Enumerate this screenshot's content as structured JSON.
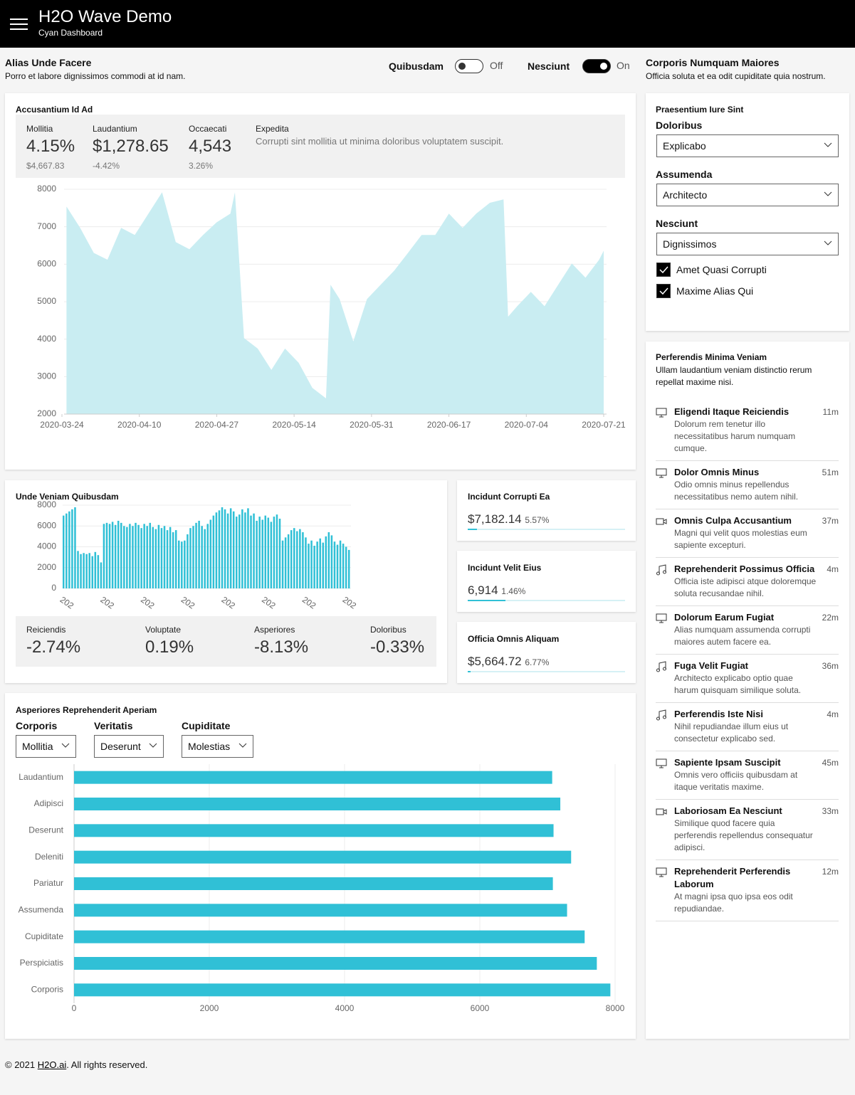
{
  "header": {
    "title": "H2O Wave Demo",
    "subtitle": "Cyan Dashboard"
  },
  "section_left": {
    "title": "Alias Unde Facere",
    "subtitle": "Porro et labore dignissimos commodi at id nam."
  },
  "toggles": [
    {
      "label": "Quibusdam",
      "state": "Off",
      "on": false
    },
    {
      "label": "Nesciunt",
      "state": "On",
      "on": true
    }
  ],
  "section_right": {
    "title": "Corporis Numquam Maiores",
    "subtitle": "Officia soluta et ea odit cupiditate quia nostrum."
  },
  "stats_top": [
    {
      "label": "Mollitia",
      "value": "4.15%",
      "aux": "$4,667.83"
    },
    {
      "label": "Laudantium",
      "value": "$1,278.65",
      "aux": "-4.42%"
    },
    {
      "label": "Occaecati",
      "value": "4,543",
      "aux": "3.26%"
    }
  ],
  "expedita": {
    "label": "Expedita",
    "text": "Corrupti sint mollitia ut minima doloribus voluptatem suscipit."
  },
  "stats_bottom": [
    {
      "label": "Reiciendis",
      "value": "-2.74%"
    },
    {
      "label": "Voluptate",
      "value": "0.19%"
    },
    {
      "label": "Asperiores",
      "value": "-8.13%"
    },
    {
      "label": "Doloribus",
      "value": "-0.33%"
    }
  ],
  "small_stats": [
    {
      "title": "Incidunt Corrupti Ea",
      "value": "$7,182.14",
      "aux": "5.57%",
      "progress": 0.06
    },
    {
      "title": "Incidunt Velit Eius",
      "value": "6,914",
      "aux": "1.46%",
      "progress": 0.24
    },
    {
      "title": "Officia Omnis Aliquam",
      "value": "$5,664.72",
      "aux": "6.77%",
      "progress": 0.02
    }
  ],
  "filters": [
    {
      "label": "Corporis",
      "value": "Mollitia"
    },
    {
      "label": "Veritatis",
      "value": "Deserunt"
    },
    {
      "label": "Cupiditate",
      "value": "Molestias"
    }
  ],
  "form": {
    "title": "Praesentium Iure Sint",
    "dropdowns": [
      {
        "label": "Doloribus",
        "value": "Explicabo"
      },
      {
        "label": "Assumenda",
        "value": "Architecto"
      },
      {
        "label": "Nesciunt",
        "value": "Dignissimos"
      }
    ],
    "checkboxes": [
      {
        "label": "Amet Quasi Corrupti",
        "checked": true
      },
      {
        "label": "Maxime Alias Qui",
        "checked": true
      }
    ]
  },
  "activity": {
    "title": "Perferendis Minima Veniam",
    "caption": "Ullam laudantium veniam distinctio rerum repellat maxime nisi.",
    "items": [
      {
        "icon": "monitor",
        "title": "Eligendi Itaque Reiciendis",
        "text": "Dolorum rem tenetur illo necessitatibus harum numquam cumque.",
        "time": "11m"
      },
      {
        "icon": "monitor",
        "title": "Dolor Omnis Minus",
        "text": "Odio omnis minus repellendus necessitatibus nemo autem nihil.",
        "time": "51m"
      },
      {
        "icon": "video",
        "title": "Omnis Culpa Accusantium",
        "text": "Magni qui velit quos molestias eum sapiente excepturi.",
        "time": "37m"
      },
      {
        "icon": "music",
        "title": "Reprehenderit Possimus Officia",
        "text": "Officia iste adipisci atque doloremque soluta recusandae nihil.",
        "time": "4m"
      },
      {
        "icon": "monitor",
        "title": "Dolorum Earum Fugiat",
        "text": "Alias numquam assumenda corrupti maiores autem facere ea.",
        "time": "22m"
      },
      {
        "icon": "music",
        "title": "Fuga Velit Fugiat",
        "text": "Architecto explicabo optio quae harum quisquam similique soluta.",
        "time": "36m"
      },
      {
        "icon": "music",
        "title": "Perferendis Iste Nisi",
        "text": "Nihil repudiandae illum eius ut consectetur explicabo sed.",
        "time": "4m"
      },
      {
        "icon": "monitor",
        "title": "Sapiente Ipsam Suscipit",
        "text": "Omnis vero officiis quibusdam at itaque veritatis maxime.",
        "time": "45m"
      },
      {
        "icon": "video",
        "title": "Laboriosam Ea Nesciunt",
        "text": "Similique quod facere quia perferendis repellendus consequatur adipisci.",
        "time": "33m"
      },
      {
        "icon": "monitor",
        "title": "Reprehenderit Perferendis Laborum",
        "text": "At magni ipsa quo ipsa eos odit repudiandae.",
        "time": "12m"
      }
    ]
  },
  "footer": {
    "prefix": "© 2021",
    "link": "H2O.ai",
    "suffix": ". All rights reserved."
  },
  "chart_data": [
    {
      "type": "area",
      "title": "Accusantium Id Ad",
      "color": "#c9edf2",
      "grid": true,
      "x": [
        "2020-03-25",
        "2020-03-28",
        "2020-03-31",
        "2020-04-03",
        "2020-04-06",
        "2020-04-09",
        "2020-04-12",
        "2020-04-15",
        "2020-04-18",
        "2020-04-21",
        "2020-04-24",
        "2020-04-27",
        "2020-04-30",
        "2020-05-01",
        "2020-05-03",
        "2020-05-06",
        "2020-05-09",
        "2020-05-12",
        "2020-05-15",
        "2020-05-18",
        "2020-05-21",
        "2020-05-22",
        "2020-05-24",
        "2020-05-27",
        "2020-05-30",
        "2020-06-02",
        "2020-06-05",
        "2020-06-08",
        "2020-06-11",
        "2020-06-14",
        "2020-06-17",
        "2020-06-20",
        "2020-06-23",
        "2020-06-26",
        "2020-06-29",
        "2020-06-30",
        "2020-07-02",
        "2020-07-05",
        "2020-07-08",
        "2020-07-11",
        "2020-07-14",
        "2020-07-17",
        "2020-07-20",
        "2020-07-21"
      ],
      "values": [
        7540,
        6970,
        6300,
        6120,
        6970,
        6780,
        7350,
        7920,
        6590,
        6400,
        6780,
        7120,
        7350,
        7920,
        4030,
        3750,
        3180,
        3750,
        3370,
        2700,
        2420,
        5450,
        5070,
        3940,
        5070,
        5450,
        5830,
        6300,
        6780,
        6780,
        7350,
        6970,
        7350,
        7640,
        7730,
        4600,
        4880,
        5260,
        4880,
        5450,
        6020,
        5640,
        6120,
        6360
      ],
      "xlim": [
        "2020-03-24",
        "2020-07-21"
      ],
      "xticks": [
        "2020-03-24",
        "2020-04-10",
        "2020-04-27",
        "2020-05-14",
        "2020-05-31",
        "2020-06-17",
        "2020-07-04",
        "2020-07-21"
      ],
      "ylim": [
        2000,
        8000
      ],
      "yticks": [
        2000,
        3000,
        4000,
        5000,
        6000,
        7000,
        8000
      ]
    },
    {
      "type": "bar",
      "title": "Unde Veniam Quibusdam",
      "color": "#30c0d6",
      "grid": true,
      "categories": [
        null,
        "202",
        null,
        null,
        null,
        null,
        null,
        null,
        null,
        null,
        null,
        null,
        null,
        null,
        null,
        "202",
        null,
        null,
        null,
        null,
        null,
        null,
        null,
        null,
        null,
        null,
        null,
        null,
        null,
        "202",
        null,
        null,
        null,
        null,
        null,
        null,
        null,
        null,
        null,
        null,
        null,
        null,
        null,
        "202",
        null,
        null,
        null,
        null,
        null,
        null,
        null,
        null,
        null,
        null,
        null,
        null,
        null,
        "202",
        null,
        null,
        null,
        null,
        null,
        null,
        null,
        null,
        null,
        null,
        null,
        null,
        null,
        "202",
        null,
        null,
        null,
        null,
        null,
        null,
        null,
        null,
        null,
        null,
        null,
        null,
        null,
        "202",
        null,
        null,
        null,
        null,
        null,
        null,
        null,
        null,
        null,
        null,
        null,
        null,
        null,
        "202"
      ],
      "values": [
        7000,
        7200,
        7400,
        7600,
        7800,
        3600,
        3300,
        3400,
        3300,
        3400,
        3100,
        3500,
        3200,
        2500,
        6200,
        6300,
        6200,
        6400,
        6100,
        6500,
        6300,
        6000,
        5900,
        6200,
        6000,
        6300,
        6100,
        5800,
        6200,
        6000,
        6300,
        5900,
        5700,
        6100,
        5800,
        6000,
        5600,
        5900,
        5400,
        5600,
        4600,
        4500,
        4600,
        5200,
        5800,
        6000,
        6300,
        6500,
        6000,
        5700,
        6200,
        6600,
        7000,
        7300,
        7500,
        7800,
        7600,
        7200,
        7700,
        7400,
        6900,
        7100,
        7600,
        7300,
        7700,
        7000,
        7200,
        6500,
        6900,
        6600,
        7000,
        6800,
        6400,
        6900,
        7100,
        6700,
        4600,
        4900,
        5200,
        5600,
        5800,
        5500,
        5700,
        5400,
        4900,
        4300,
        4600,
        4100,
        4500,
        4800,
        4400,
        5000,
        5400,
        5100,
        4500,
        4200,
        4600,
        4300,
        4000,
        3700
      ],
      "ylim": [
        0,
        8000
      ],
      "yticks": [
        0,
        2000,
        4000,
        6000,
        8000
      ]
    },
    {
      "type": "barh",
      "title": "Asperiores Reprehenderit Aperiam",
      "color": "#30c0d6",
      "grid": true,
      "categories": [
        "Laudantium",
        "Adipisci",
        "Deserunt",
        "Deleniti",
        "Pariatur",
        "Assumenda",
        "Cupiditate",
        "Perspiciatis",
        "Corporis"
      ],
      "values": [
        7070,
        7190,
        7090,
        7350,
        7080,
        7290,
        7550,
        7730,
        7930
      ],
      "xlim": [
        0,
        8000
      ],
      "xticks": [
        0,
        2000,
        4000,
        6000,
        8000
      ]
    }
  ]
}
